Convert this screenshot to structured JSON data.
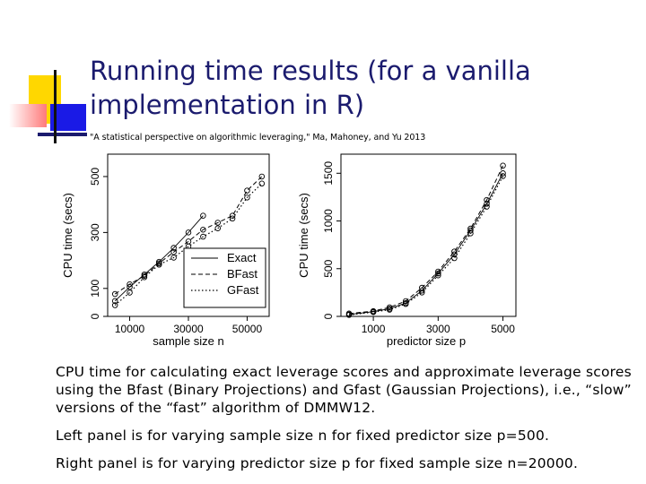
{
  "title": "Running time results (for a vanilla implementation in R)",
  "citation": "\"A statistical perspective on algorithmic leveraging,\" Ma, Mahoney, and Yu 2013",
  "body": {
    "paragraph1": "CPU time for calculating exact leverage scores and approximate leverage scores using the Bfast (Binary Projections) and Gfast (Gaussian Projections), i.e., “slow” versions of the “fast” algorithm of DMMW12.",
    "paragraph2": "Left panel is for varying sample size n for fixed predictor size p=500.",
    "paragraph3": "Right panel is for varying predictor size p for fixed sample size n=20000."
  },
  "colors": {
    "title": "#1b1b6e",
    "deco_yellow": "#ffd700",
    "deco_blue": "#1a1ae6",
    "deco_pink": "#ff7a7a"
  },
  "chart_data": [
    {
      "type": "line",
      "xlabel": "sample size n",
      "ylabel": "CPU time (secs)",
      "xlim": [
        2500,
        57500
      ],
      "ylim": [
        0,
        580
      ],
      "xticks": [
        10000,
        30000,
        50000
      ],
      "yticks": [
        0,
        100,
        300,
        500
      ],
      "grid": false,
      "legend_position": "bottom-right",
      "series": [
        {
          "name": "Exact",
          "style": "solid",
          "x": [
            5000,
            10000,
            15000,
            20000,
            25000,
            30000,
            35000
          ],
          "y": [
            55,
            105,
            150,
            195,
            245,
            300,
            360
          ]
        },
        {
          "name": "BFast",
          "style": "dashed",
          "x": [
            5000,
            10000,
            15000,
            20000,
            25000,
            30000,
            35000,
            40000,
            45000,
            50000,
            55000
          ],
          "y": [
            80,
            115,
            145,
            190,
            230,
            268,
            310,
            335,
            360,
            450,
            500
          ]
        },
        {
          "name": "GFast",
          "style": "dotted",
          "x": [
            5000,
            10000,
            15000,
            20000,
            25000,
            30000,
            35000,
            40000,
            45000,
            50000,
            55000
          ],
          "y": [
            40,
            85,
            140,
            185,
            210,
            250,
            285,
            315,
            350,
            425,
            475
          ]
        }
      ]
    },
    {
      "type": "line",
      "xlabel": "predictor size p",
      "ylabel": "CPU time (secs)",
      "xlim": [
        0,
        5400
      ],
      "ylim": [
        0,
        1700
      ],
      "xticks": [
        1000,
        3000,
        5000
      ],
      "yticks": [
        0,
        500,
        1000,
        1500
      ],
      "grid": false,
      "legend_position": "",
      "series": [
        {
          "name": "Exact",
          "style": "solid",
          "x": [
            250,
            1000,
            1500,
            2000,
            2500,
            3000,
            3500,
            4000,
            4500,
            5000
          ],
          "y": [
            20,
            50,
            80,
            140,
            270,
            450,
            650,
            900,
            1180,
            1500
          ]
        },
        {
          "name": "BFast",
          "style": "dashed",
          "x": [
            250,
            1000,
            1500,
            2000,
            2500,
            3000,
            3500,
            4000,
            4500,
            5000
          ],
          "y": [
            30,
            55,
            95,
            160,
            300,
            470,
            680,
            920,
            1220,
            1580
          ]
        },
        {
          "name": "GFast",
          "style": "dotted",
          "x": [
            250,
            1000,
            1500,
            2000,
            2500,
            3000,
            3500,
            4000,
            4500,
            5000
          ],
          "y": [
            15,
            45,
            70,
            130,
            250,
            430,
            610,
            870,
            1150,
            1470
          ]
        }
      ]
    }
  ]
}
